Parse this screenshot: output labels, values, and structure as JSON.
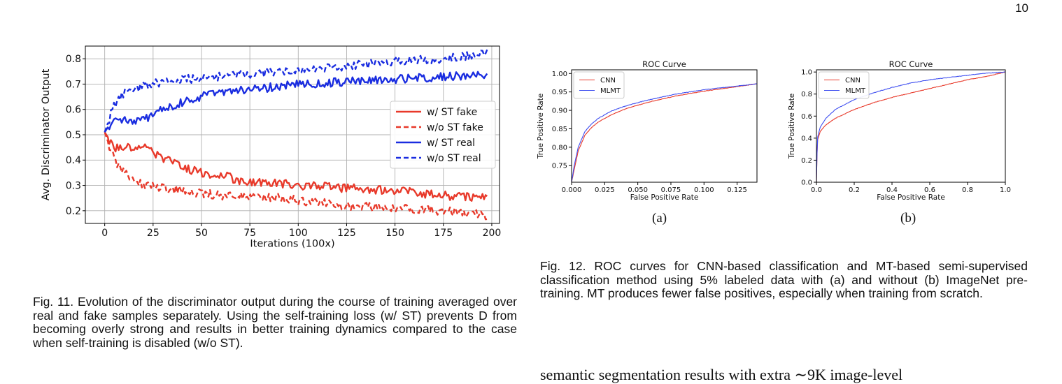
{
  "page_number": "10",
  "fig11": {
    "caption": "Fig. 11. Evolution of the discriminator output during the course of training averaged over real and fake samples separately. Using the self-training loss (w/ ST) prevents D from becoming overly strong and results in better training dynamics compared to the case when self-training is disabled (w/o ST).",
    "colors": {
      "fake": "#e8392a",
      "real": "#1a2de0"
    }
  },
  "fig12": {
    "caption": "Fig. 12. ROC curves for CNN-based classification and MT-based semi-supervised classification method using 5% labeled data with (a) and without (b) ImageNet pre-training. MT produces fewer false positives, especially when training from scratch.",
    "label_a": "(a)",
    "label_b": "(b)"
  },
  "bottom_text": "semantic segmentation results with extra ∼9K image-level",
  "chart_data": [
    {
      "type": "line",
      "title": "",
      "xlabel": "Iterations (100x)",
      "ylabel": "Avg. Discriminator Output",
      "xlim": [
        -10,
        204
      ],
      "ylim": [
        0.15,
        0.85
      ],
      "xticks": [
        0,
        25,
        50,
        75,
        100,
        125,
        150,
        175,
        200
      ],
      "yticks": [
        0.2,
        0.3,
        0.4,
        0.5,
        0.6,
        0.7,
        0.8
      ],
      "grid": true,
      "legend": "center-right",
      "x": [
        0,
        5,
        10,
        20,
        30,
        40,
        50,
        60,
        75,
        90,
        100,
        125,
        150,
        175,
        198
      ],
      "series": [
        {
          "name": "w/ ST fake",
          "style": "solid",
          "color": "#e8392a",
          "values": [
            0.51,
            0.45,
            0.45,
            0.45,
            0.41,
            0.37,
            0.35,
            0.34,
            0.31,
            0.31,
            0.3,
            0.29,
            0.28,
            0.26,
            0.25
          ]
        },
        {
          "name": "w/o ST fake",
          "style": "dashed",
          "color": "#e8392a",
          "values": [
            0.51,
            0.4,
            0.35,
            0.3,
            0.29,
            0.28,
            0.27,
            0.26,
            0.26,
            0.25,
            0.24,
            0.22,
            0.21,
            0.2,
            0.18
          ]
        },
        {
          "name": "w/ ST real",
          "style": "solid",
          "color": "#1a2de0",
          "values": [
            0.51,
            0.57,
            0.56,
            0.56,
            0.6,
            0.63,
            0.65,
            0.67,
            0.68,
            0.69,
            0.7,
            0.71,
            0.72,
            0.73,
            0.74
          ]
        },
        {
          "name": "w/o ST real",
          "style": "dashed",
          "color": "#1a2de0",
          "values": [
            0.51,
            0.62,
            0.66,
            0.69,
            0.71,
            0.72,
            0.72,
            0.73,
            0.74,
            0.75,
            0.76,
            0.77,
            0.79,
            0.8,
            0.82
          ]
        }
      ]
    },
    {
      "type": "line",
      "title": "ROC Curve",
      "xlabel": "False Positive Rate",
      "ylabel": "True Positive Rate",
      "xlim": [
        0,
        0.14
      ],
      "ylim": [
        0.705,
        1.01
      ],
      "xticks": [
        0.0,
        0.025,
        0.05,
        0.075,
        0.1,
        0.125
      ],
      "xtick_labels": [
        "0.000",
        "0.025",
        "0.050",
        "0.075",
        "0.100",
        "0.125"
      ],
      "yticks": [
        0.75,
        0.8,
        0.85,
        0.9,
        0.95,
        1.0
      ],
      "ytick_labels": [
        "0.75",
        "0.80",
        "0.85",
        "0.90",
        "0.95",
        "1.00"
      ],
      "legend": "top-left",
      "x": [
        0.0,
        0.002,
        0.005,
        0.01,
        0.015,
        0.02,
        0.03,
        0.04,
        0.05,
        0.06,
        0.08,
        0.1,
        0.12,
        0.14
      ],
      "series": [
        {
          "name": "CNN",
          "color": "#e8392a",
          "values": [
            0.705,
            0.74,
            0.79,
            0.832,
            0.853,
            0.868,
            0.888,
            0.903,
            0.914,
            0.924,
            0.94,
            0.952,
            0.962,
            0.972
          ]
        },
        {
          "name": "MLMT",
          "color": "#3f4ff0",
          "values": [
            0.705,
            0.75,
            0.8,
            0.842,
            0.863,
            0.878,
            0.898,
            0.911,
            0.921,
            0.93,
            0.945,
            0.956,
            0.964,
            0.972
          ]
        }
      ]
    },
    {
      "type": "line",
      "title": "ROC Curve",
      "xlabel": "False Positive Rate",
      "ylabel": "True Positive Rate",
      "xlim": [
        0,
        1.0
      ],
      "ylim": [
        0,
        1.02
      ],
      "xticks": [
        0.0,
        0.2,
        0.4,
        0.6,
        0.8,
        1.0
      ],
      "xtick_labels": [
        "0.0",
        "0.2",
        "0.4",
        "0.6",
        "0.8",
        "1.0"
      ],
      "yticks": [
        0.0,
        0.2,
        0.4,
        0.6,
        0.8,
        1.0
      ],
      "ytick_labels": [
        "0.0",
        "0.2",
        "0.4",
        "0.6",
        "0.8",
        "1.0"
      ],
      "legend": "top-left",
      "x": [
        0.0,
        0.005,
        0.02,
        0.05,
        0.1,
        0.2,
        0.3,
        0.4,
        0.5,
        0.6,
        0.7,
        0.8,
        0.9,
        1.0
      ],
      "series": [
        {
          "name": "CNN",
          "color": "#e8392a",
          "values": [
            0.0,
            0.38,
            0.46,
            0.52,
            0.58,
            0.66,
            0.72,
            0.77,
            0.81,
            0.85,
            0.89,
            0.93,
            0.96,
            1.0
          ]
        },
        {
          "name": "MLMT",
          "color": "#3f4ff0",
          "values": [
            0.0,
            0.4,
            0.5,
            0.58,
            0.66,
            0.75,
            0.81,
            0.86,
            0.9,
            0.93,
            0.95,
            0.97,
            0.99,
            1.0
          ]
        }
      ]
    }
  ]
}
